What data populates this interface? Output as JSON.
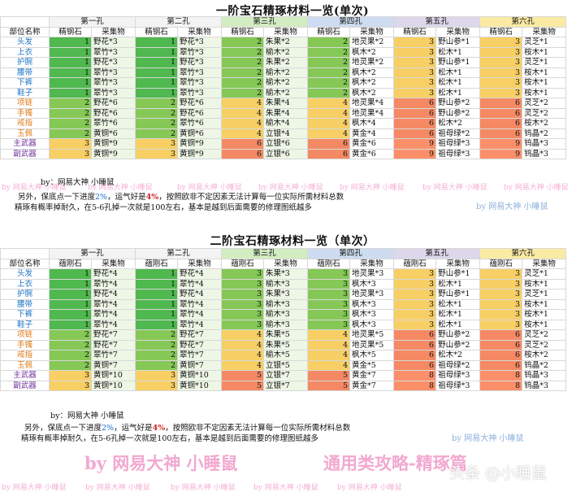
{
  "colors": {
    "s1": "#4fb84e",
    "s2": "#85c856",
    "s3": "#dcea99",
    "s4": "#f7cf64",
    "s5": "#f48964",
    "s6": "#fb8f69",
    "lightGreen": "#dff2cf",
    "paleBlue": "#e2edf8",
    "tableGrey": "#eaeaea",
    "h1": "#f3f3f3",
    "h2": "#f3f3f3",
    "h3": "#d3edc2",
    "h4": "#cddcf0",
    "h5": "#ddd7ec",
    "h6": "#fbeaa4",
    "part_blue": "#1c74c7",
    "part_orange": "#e07a16",
    "part_purple": "#7030a0"
  },
  "table1": {
    "title": "一阶宝石精琢材料一览(单次)",
    "holes": [
      "第一孔",
      "第二孔",
      "第三孔",
      "第四孔",
      "第五孔",
      "第六孔"
    ],
    "headerLeft": "部位名称",
    "stoneLabel": "精钢石",
    "collectLabel": "采集物",
    "rows": [
      {
        "part": "头发",
        "c": [
          "1",
          "野花*3",
          "1",
          "野花*3",
          "2",
          "朱果*2",
          "2",
          "地灵果*2",
          "3",
          "野山参*1",
          "3",
          "灵芝*1"
        ]
      },
      {
        "part": "上衣",
        "c": [
          "1",
          "翠竹*3",
          "1",
          "翠竹*3",
          "2",
          "榆木*2",
          "2",
          "枫木*2",
          "3",
          "松木*1",
          "3",
          "桉木*1"
        ]
      },
      {
        "part": "护腕",
        "c": [
          "1",
          "野花*3",
          "1",
          "野花*3",
          "2",
          "朱果*2",
          "2",
          "地灵果*2",
          "3",
          "野山参*1",
          "3",
          "灵芝*1"
        ]
      },
      {
        "part": "腰带",
        "c": [
          "1",
          "翠竹*3",
          "1",
          "翠竹*3",
          "2",
          "榆木*2",
          "2",
          "枫木*2",
          "3",
          "松木*1",
          "3",
          "桉木*1"
        ]
      },
      {
        "part": "下裤",
        "c": [
          "1",
          "翠竹*3",
          "1",
          "翠竹*3",
          "2",
          "榆木*2",
          "2",
          "枫木*2",
          "3",
          "松木*1",
          "3",
          "桉木*1"
        ]
      },
      {
        "part": "鞋子",
        "c": [
          "1",
          "翠竹*3",
          "1",
          "翠竹*3",
          "2",
          "榆木*2",
          "2",
          "枫木*2",
          "3",
          "松木*1",
          "3",
          "桉木*1"
        ]
      },
      {
        "part": "项链",
        "c": [
          "2",
          "野花*6",
          "2",
          "野花*6",
          "4",
          "朱果*4",
          "4",
          "地灵果*4",
          "6",
          "野山参*2",
          "6",
          "灵芝*2"
        ]
      },
      {
        "part": "手镯",
        "c": [
          "2",
          "野花*6",
          "2",
          "野花*6",
          "4",
          "朱果*4",
          "4",
          "地灵果*4",
          "6",
          "野山参*2",
          "6",
          "灵芝*2"
        ]
      },
      {
        "part": "戒指",
        "c": [
          "2",
          "翠竹*6",
          "2",
          "翠竹*6",
          "4",
          "榆木*4",
          "4",
          "枫木*4",
          "6",
          "松木*2",
          "6",
          "桉木*2"
        ]
      },
      {
        "part": "玉佩",
        "c": [
          "2",
          "黄铜*6",
          "2",
          "黄铜*6",
          "4",
          "立银*4",
          "4",
          "黄金*4",
          "6",
          "祖母绿*2",
          "6",
          "钨晶*2"
        ]
      },
      {
        "part": "主武器",
        "c": [
          "3",
          "黄铜*9",
          "3",
          "黄铜*9",
          "6",
          "立银*6",
          "6",
          "黄金*6",
          "9",
          "祖母绿*3",
          "9",
          "钨晶*3"
        ]
      },
      {
        "part": "副武器",
        "c": [
          "3",
          "黄铜*9",
          "3",
          "黄铜*9",
          "6",
          "立银*6",
          "6",
          "黄金*6",
          "9",
          "祖母绿*3",
          "9",
          "钨晶*3"
        ]
      }
    ],
    "credit": "by：网易大神   小睡鼠",
    "note_a": "另外，保底点一下进度",
    "note_pct1": "2%",
    "note_b": "，运气好是",
    "note_pct2": "4%",
    "note_c": "，按照欧非不定因素无法计算每一位实际所需材料总数",
    "note_line2": "精琢有概率掉耐久，在5-6孔掉一次就是100左右，基本是越到后面需要的修理图纸越多"
  },
  "table2": {
    "title": "二阶宝石精琢材料一览（单次）",
    "holes": [
      "第一孔",
      "第二孔",
      "第三孔",
      "第四孔",
      "第五孔",
      "第六孔"
    ],
    "headerLeft": "部位名称",
    "stoneLabel": "蕴刚石",
    "collectLabel": "采集物",
    "rows": [
      {
        "part": "头发",
        "c": [
          "1",
          "野花*4",
          "1",
          "野花*4",
          "3",
          "朱果*3",
          "3",
          "地灵果*3",
          "3",
          "野山参*1",
          "3",
          "灵芝*1"
        ]
      },
      {
        "part": "上衣",
        "c": [
          "1",
          "翠竹*4",
          "1",
          "翠竹*4",
          "3",
          "榆木*3",
          "3",
          "枫木*3",
          "3",
          "松木*1",
          "3",
          "桉木*1"
        ]
      },
      {
        "part": "护腕",
        "c": [
          "1",
          "野花*4",
          "1",
          "野花*4",
          "3",
          "朱果*3",
          "3",
          "地灵果*3",
          "3",
          "野山参*1",
          "3",
          "灵芝*1"
        ]
      },
      {
        "part": "腰带",
        "c": [
          "1",
          "翠竹*4",
          "1",
          "翠竹*4",
          "3",
          "榆木*3",
          "3",
          "枫木*3",
          "3",
          "松木*1",
          "3",
          "桉木*1"
        ]
      },
      {
        "part": "下裤",
        "c": [
          "1",
          "翠竹*4",
          "1",
          "翠竹*4",
          "3",
          "榆木*3",
          "3",
          "枫木*3",
          "3",
          "松木*1",
          "3",
          "桉木*1"
        ]
      },
      {
        "part": "鞋子",
        "c": [
          "1",
          "翠竹*4",
          "1",
          "翠竹*4",
          "3",
          "榆木*3",
          "3",
          "枫木*3",
          "3",
          "松木*1",
          "3",
          "桉木*1"
        ]
      },
      {
        "part": "项链",
        "c": [
          "2",
          "野花*7",
          "2",
          "野花*7",
          "4",
          "朱果*5",
          "4",
          "地灵果*5",
          "6",
          "野山参*2",
          "6",
          "灵芝*2"
        ]
      },
      {
        "part": "手镯",
        "c": [
          "2",
          "野花*7",
          "2",
          "野花*7",
          "4",
          "朱果*5",
          "4",
          "地灵果*5",
          "6",
          "野山参*2",
          "6",
          "灵芝*2"
        ]
      },
      {
        "part": "戒指",
        "c": [
          "2",
          "翠竹*7",
          "2",
          "翠竹*7",
          "4",
          "榆木*5",
          "4",
          "枫木*5",
          "6",
          "松木*2",
          "6",
          "桉木*2"
        ]
      },
      {
        "part": "玉佩",
        "c": [
          "2",
          "黄铜*7",
          "2",
          "黄铜*7",
          "4",
          "立银*5",
          "4",
          "黄金*5",
          "6",
          "祖母绿*2",
          "6",
          "钨晶*2"
        ]
      },
      {
        "part": "主武器",
        "c": [
          "3",
          "黄铜*10",
          "3",
          "黄铜*10",
          "5",
          "立银*7",
          "5",
          "黄金*7",
          "8",
          "祖母绿*3",
          "8",
          "钨晶*3"
        ]
      },
      {
        "part": "副武器",
        "c": [
          "3",
          "黄铜*10",
          "3",
          "黄铜*10",
          "5",
          "立银*7",
          "5",
          "黄金*7",
          "8",
          "祖母绿*3",
          "8",
          "钨晶*3"
        ]
      }
    ],
    "credit": "by：网易大神   小睡鼠",
    "note_a": "另外，保底点一下进度",
    "note_pct1": "2%",
    "note_b": "，运气好是",
    "note_pct2": "4%",
    "note_c": "，按照欧非不定因素无法计算每一位实际所需材料总数",
    "note_line2": "精琢有概率掉耐久，在5-6孔掉一次就是100左右，基本是越到后面需要的修理图纸越多"
  },
  "watermark": {
    "small": "by 网易大神 小睡鼠",
    "big_left": "by 网易大神 小睡鼠",
    "big_right": "通用类攻略-精琢篇",
    "corner": "头条 @小睡鼠",
    "mid_right": "by 网易大神  小睡鼠"
  }
}
